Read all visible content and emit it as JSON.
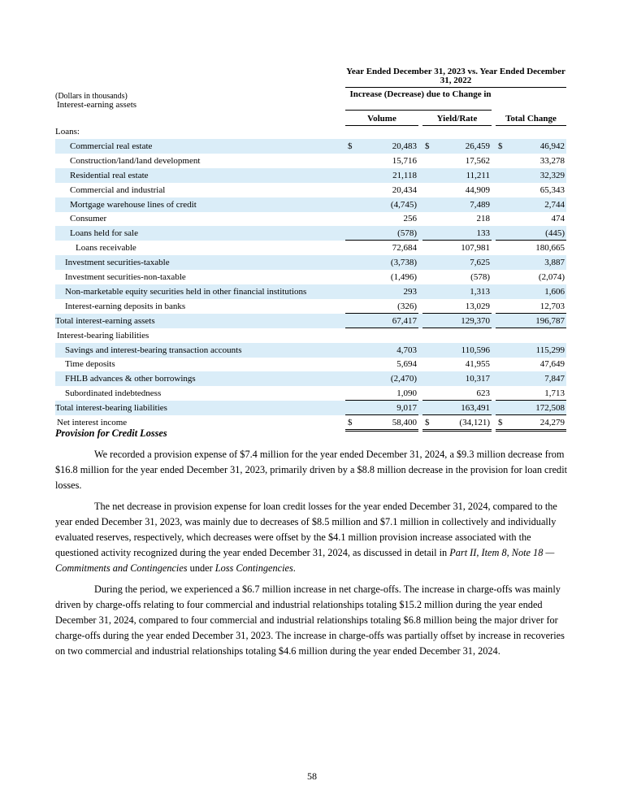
{
  "table": {
    "period_header": "Year Ended December 31, 2023 vs. Year Ended December 31, 2022",
    "units": "(Dollars in thousands)",
    "section_label": "Interest-earning assets",
    "group_header": "Increase (Decrease) due to Change in",
    "columns": [
      "Volume",
      "Yield/Rate",
      "Total Change"
    ],
    "rows": [
      {
        "label": "Loans:"
      },
      {
        "label": "Commercial real estate",
        "currency": "$",
        "values": [
          "20,483",
          "26,459",
          "46,942"
        ]
      },
      {
        "label": "Construction/land/land development",
        "values": [
          "15,716",
          "17,562",
          "33,278"
        ]
      },
      {
        "label": "Residential real estate",
        "values": [
          "21,118",
          "11,211",
          "32,329"
        ]
      },
      {
        "label": "Commercial and industrial",
        "values": [
          "20,434",
          "44,909",
          "65,343"
        ]
      },
      {
        "label": "Mortgage warehouse lines of credit",
        "values": [
          "(4,745)",
          "7,489",
          "2,744"
        ]
      },
      {
        "label": "Consumer",
        "values": [
          "256",
          "218",
          "474"
        ]
      },
      {
        "label": "Loans held for sale",
        "values": [
          "(578)",
          "133",
          "(445)"
        ]
      },
      {
        "label": "Loans receivable",
        "values": [
          "72,684",
          "107,981",
          "180,665"
        ]
      },
      {
        "label": "Investment securities-taxable",
        "values": [
          "(3,738)",
          "7,625",
          "3,887"
        ]
      },
      {
        "label": "Investment securities-non-taxable",
        "values": [
          "(1,496)",
          "(578)",
          "(2,074)"
        ]
      },
      {
        "label": "Non-marketable equity securities held in other financial institutions",
        "values": [
          "293",
          "1,313",
          "1,606"
        ]
      },
      {
        "label": "Interest-earning deposits in banks",
        "values": [
          "(326)",
          "13,029",
          "12,703"
        ]
      },
      {
        "label": "Total interest-earning assets",
        "values": [
          "67,417",
          "129,370",
          "196,787"
        ]
      },
      {
        "label": "Interest-bearing liabilities"
      },
      {
        "label": "Savings and interest-bearing transaction accounts",
        "values": [
          "4,703",
          "110,596",
          "115,299"
        ]
      },
      {
        "label": "Time deposits",
        "values": [
          "5,694",
          "41,955",
          "47,649"
        ]
      },
      {
        "label": "FHLB advances & other borrowings",
        "values": [
          "(2,470)",
          "10,317",
          "7,847"
        ]
      },
      {
        "label": "Subordinated indebtedness",
        "values": [
          "1,090",
          "623",
          "1,713"
        ]
      },
      {
        "label": "Total interest-bearing liabilities",
        "values": [
          "9,017",
          "163,491",
          "172,508"
        ]
      },
      {
        "label": "Net interest income",
        "currency": "$",
        "values": [
          "58,400",
          "(34,121)",
          "24,279"
        ]
      }
    ]
  },
  "section": {
    "heading": "Provision for Credit Losses",
    "paragraphs": [
      [
        {
          "text": "We recorded a provision expense of $7.4 million for the year ended December 31, 2024, a $9.3 million decrease from $16.8 million for the year ended December 31, 2023, primarily driven by a $8.8 million decrease in the provision for loan credit losses."
        }
      ],
      [
        {
          "text": "The net decrease in provision expense for loan credit losses for the year ended December 31, 2024, compared to the year ended December 31, 2023, was mainly due to decreases of $8.5 million and $7.1 million in collectively and individually evaluated reserves, respectively, which decreases were offset by the $4.1 million provision increase associated with the questioned activity recognized during the year ended December 31, 2024, as discussed in detail in "
        },
        {
          "text": "Part II, Item 8, Note 18 — Commitments and Contingencies",
          "italic": true
        },
        {
          "text": " under "
        },
        {
          "text": "Loss Contingencies",
          "italic": true
        },
        {
          "text": "."
        }
      ],
      [
        {
          "text": "During the period, we experienced a $6.7 million increase in net charge-offs. The increase in charge-offs was mainly driven by charge-offs relating to four commercial and industrial relationships totaling $15.2 million during the year ended December 31, 2024, compared to four commercial and industrial relationships totaling $6.8 million being the major driver for charge-offs during the year ended December 31, 2023. The increase in charge-offs was partially offset by increase in recoveries on two commercial and industrial relationships totaling $4.6 million during the year ended December 31, 2024."
        }
      ]
    ]
  },
  "page_number": "58"
}
